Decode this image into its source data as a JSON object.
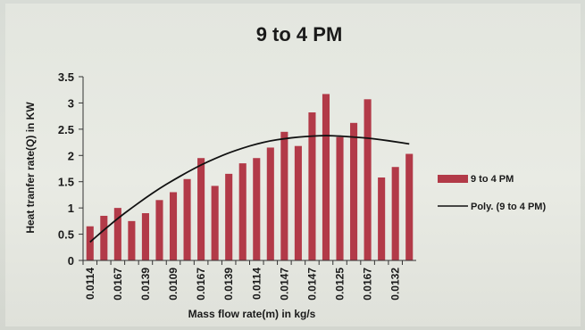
{
  "chart_data": {
    "type": "bar",
    "title": "9 to 4 PM",
    "xlabel": "Mass flow rate(m) in kg/s",
    "ylabel": "Heat tranfer rate(Q) in KW",
    "ylim": [
      0,
      3.5
    ],
    "yticks": [
      "0",
      "0.5",
      "1",
      "1.5",
      "2",
      "2.5",
      "3",
      "3.5"
    ],
    "categories": [
      "0.0114",
      "",
      "0.0167",
      "",
      "0.0139",
      "",
      "0.0109",
      "",
      "0.0167",
      "",
      "0.0139",
      "",
      "0.0114",
      "",
      "0.0147",
      "",
      "0.0147",
      "",
      "0.0125",
      "",
      "0.0167",
      "",
      "0.0132",
      ""
    ],
    "series": [
      {
        "name": "9 to 4 PM",
        "color": "#b23a48",
        "values": [
          0.65,
          0.85,
          1.0,
          0.75,
          0.9,
          1.15,
          1.3,
          1.55,
          1.95,
          1.42,
          1.65,
          1.85,
          1.95,
          2.15,
          2.45,
          2.18,
          2.82,
          3.17,
          2.35,
          2.62,
          3.07,
          1.58,
          1.78,
          2.03
        ]
      }
    ],
    "trendline": {
      "name": "Poly. (9 to 4 PM)",
      "type": "polynomial",
      "color": "#111111",
      "values": [
        0.35,
        0.58,
        0.8,
        1.0,
        1.19,
        1.37,
        1.53,
        1.68,
        1.82,
        1.94,
        2.05,
        2.14,
        2.22,
        2.28,
        2.32,
        2.35,
        2.37,
        2.38,
        2.37,
        2.35,
        2.33,
        2.3,
        2.26,
        2.22
      ]
    },
    "legend_position": "right",
    "grid": false
  }
}
